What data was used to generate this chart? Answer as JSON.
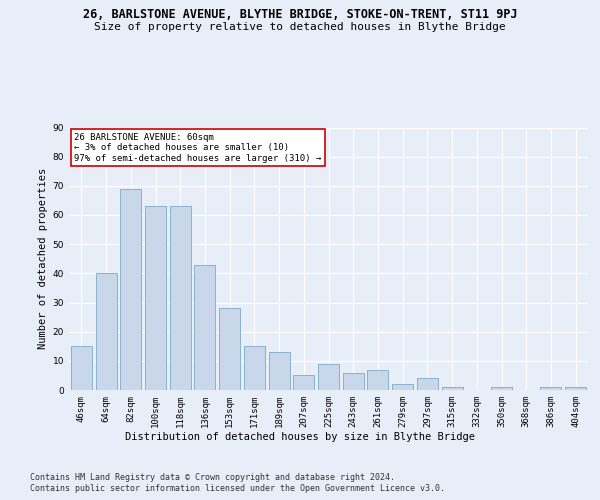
{
  "title": "26, BARLSTONE AVENUE, BLYTHE BRIDGE, STOKE-ON-TRENT, ST11 9PJ",
  "subtitle": "Size of property relative to detached houses in Blythe Bridge",
  "xlabel": "Distribution of detached houses by size in Blythe Bridge",
  "ylabel": "Number of detached properties",
  "footnote1": "Contains HM Land Registry data © Crown copyright and database right 2024.",
  "footnote2": "Contains public sector information licensed under the Open Government Licence v3.0.",
  "categories": [
    "46sqm",
    "64sqm",
    "82sqm",
    "100sqm",
    "118sqm",
    "136sqm",
    "153sqm",
    "171sqm",
    "189sqm",
    "207sqm",
    "225sqm",
    "243sqm",
    "261sqm",
    "279sqm",
    "297sqm",
    "315sqm",
    "332sqm",
    "350sqm",
    "368sqm",
    "386sqm",
    "404sqm"
  ],
  "values": [
    15,
    40,
    69,
    63,
    63,
    43,
    28,
    15,
    13,
    5,
    9,
    6,
    7,
    2,
    4,
    1,
    0,
    1,
    0,
    1,
    1
  ],
  "bar_color": "#c8d8ea",
  "bar_edge_color": "#7aaac8",
  "annotation_box_text": "26 BARLSTONE AVENUE: 60sqm\n← 3% of detached houses are smaller (10)\n97% of semi-detached houses are larger (310) →",
  "annotation_box_color": "#ffffff",
  "annotation_box_edge_color": "#cc0000",
  "ylim": [
    0,
    90
  ],
  "yticks": [
    0,
    10,
    20,
    30,
    40,
    50,
    60,
    70,
    80,
    90
  ],
  "bg_color": "#e8eef8",
  "plot_bg_color": "#e8eef8",
  "grid_color": "#ffffff",
  "title_fontsize": 8.5,
  "subtitle_fontsize": 8,
  "axis_label_fontsize": 7.5,
  "tick_fontsize": 6.5,
  "annotation_fontsize": 6.5,
  "footnote_fontsize": 6
}
